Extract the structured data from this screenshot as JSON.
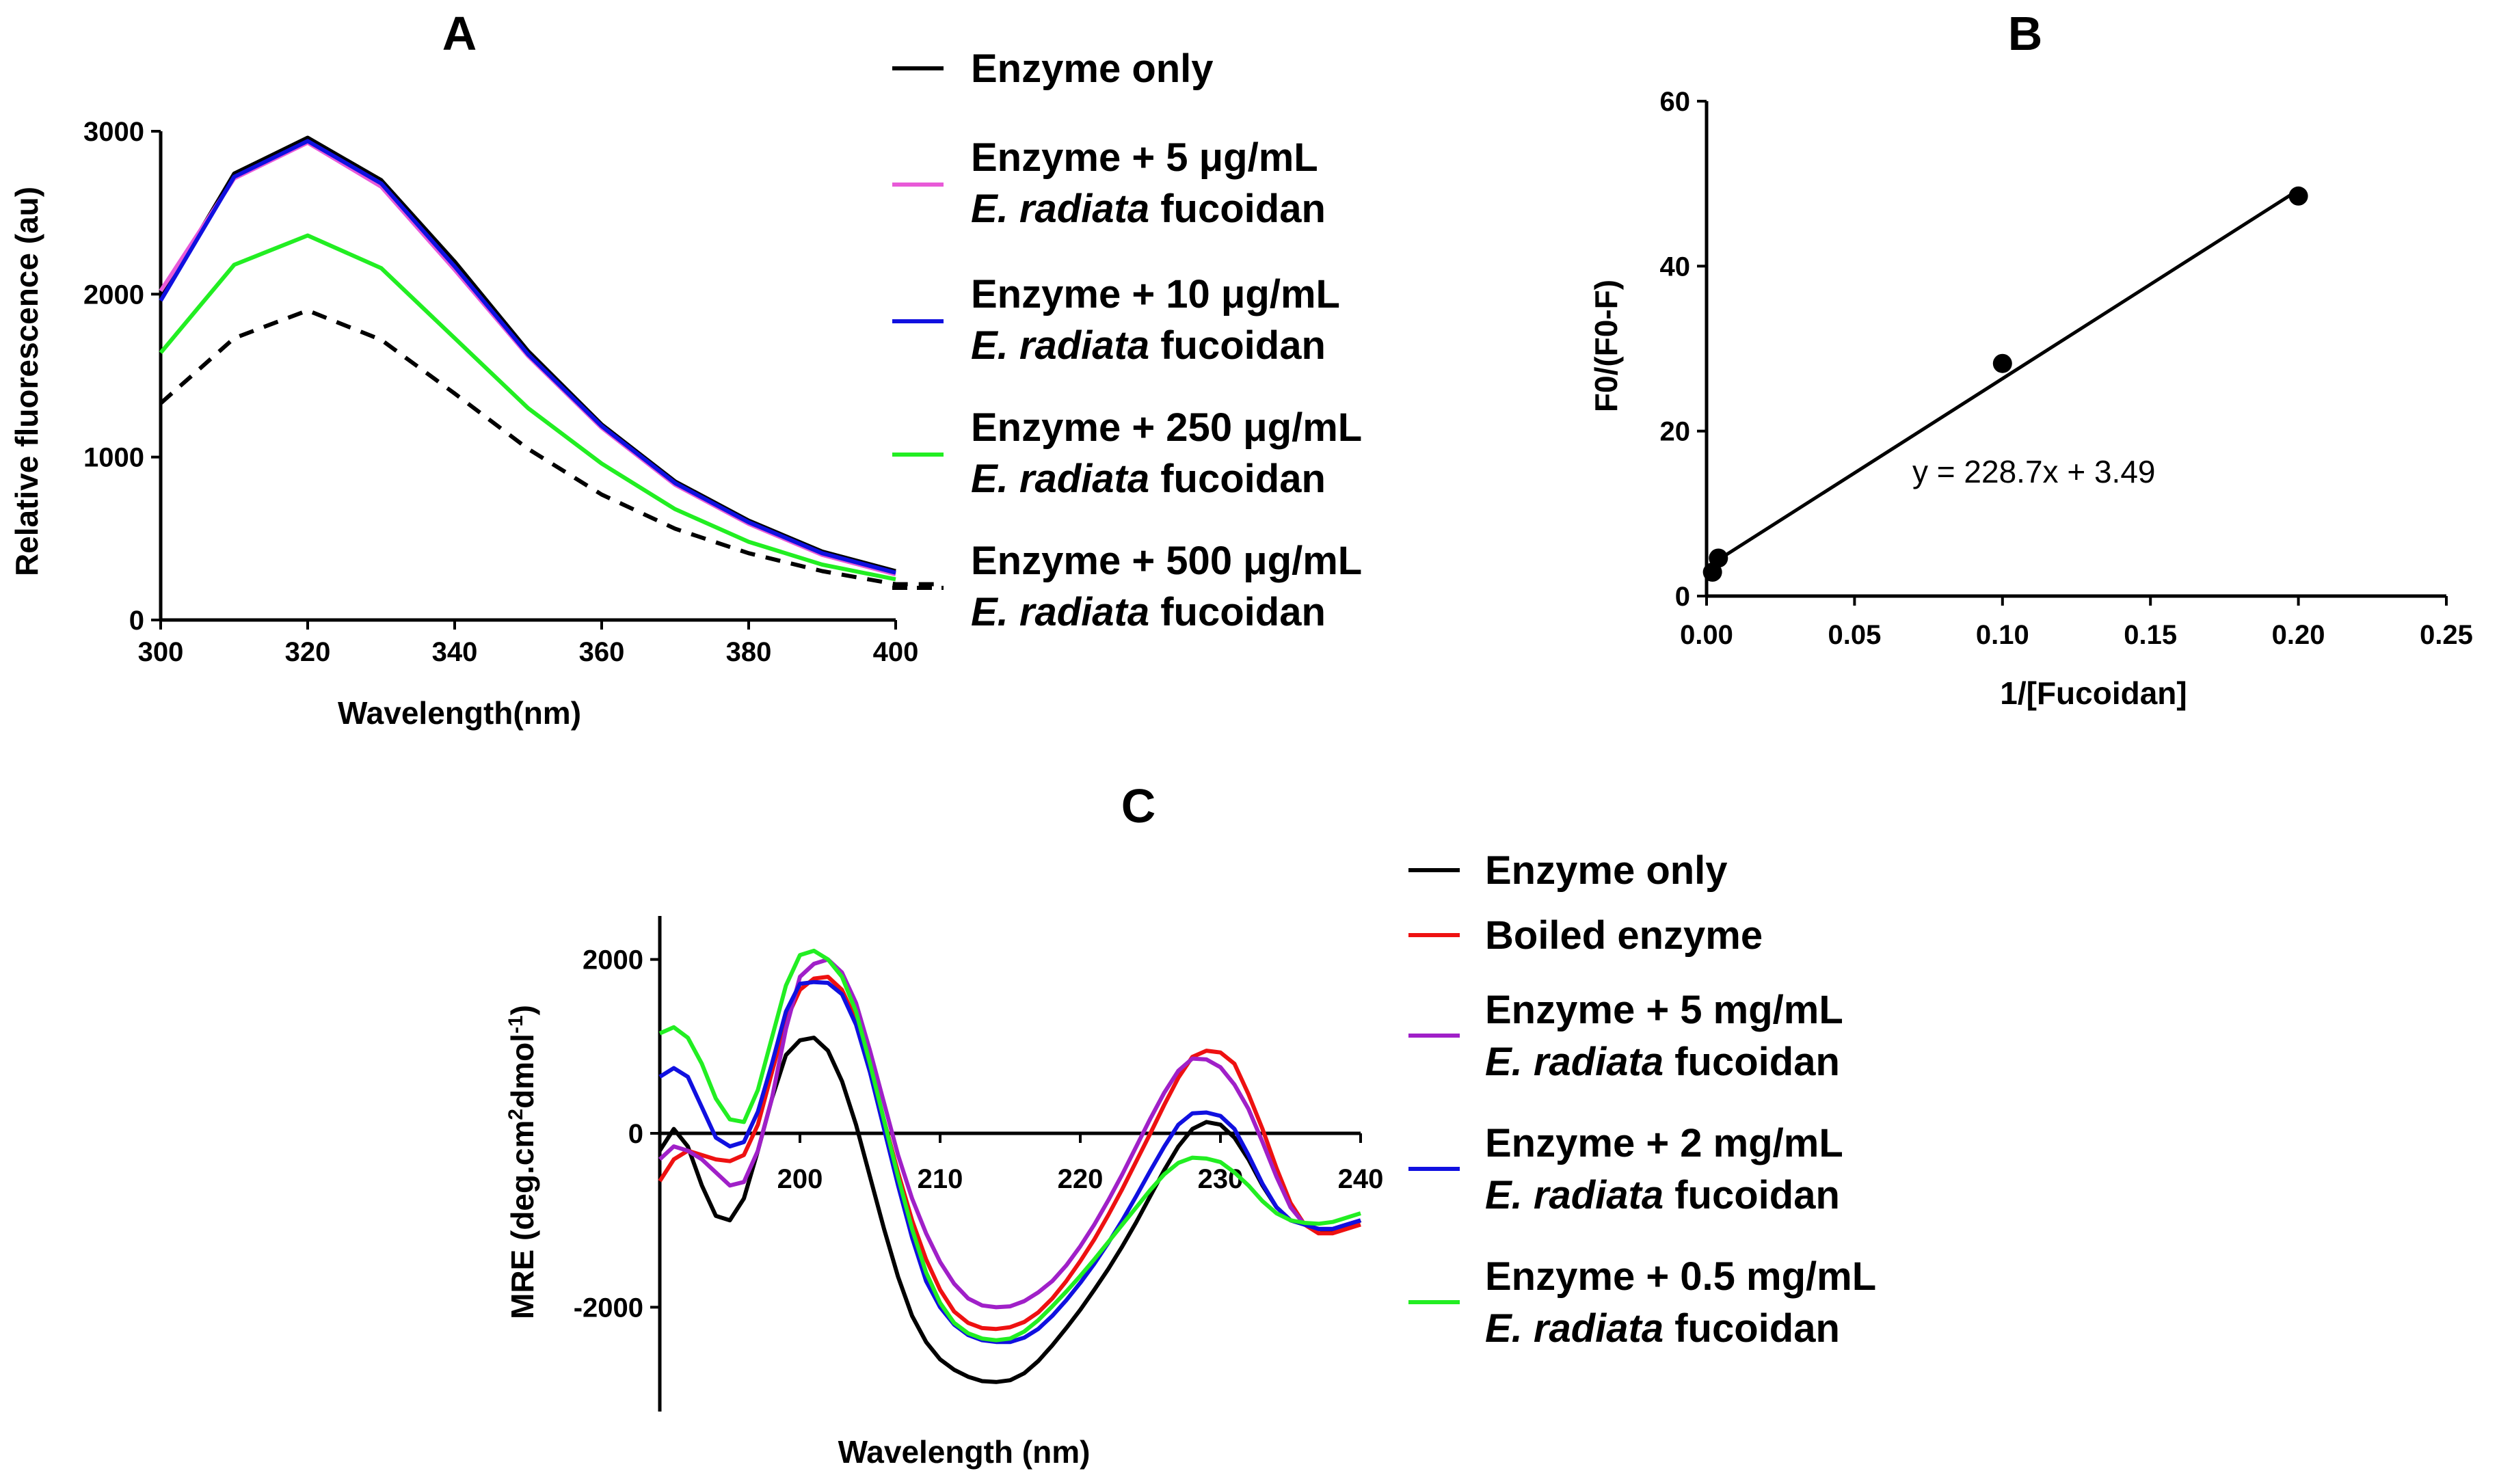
{
  "chart_data": [
    {
      "panel": "A",
      "type": "line",
      "title": "A",
      "xlabel": "Wavelength(nm)",
      "ylabel": "Relative fluorescence (au)",
      "xlim": [
        300,
        400
      ],
      "ylim": [
        0,
        3000
      ],
      "xticks": [
        "300",
        "320",
        "340",
        "360",
        "380",
        "400"
      ],
      "yticks": [
        "0",
        "1000",
        "2000",
        "3000"
      ],
      "x": [
        300,
        310,
        320,
        330,
        340,
        350,
        360,
        370,
        380,
        390,
        400
      ],
      "series": [
        {
          "name": "Enzyme only",
          "color": "#000000",
          "dash": false,
          "values": [
            1980,
            2740,
            2960,
            2700,
            2200,
            1650,
            1200,
            850,
            610,
            420,
            300
          ]
        },
        {
          "name": "Enzyme + 5 μg/mL E. radiata fucoidan",
          "color": "#e85ad8",
          "dash": false,
          "values": [
            2020,
            2710,
            2930,
            2660,
            2150,
            1620,
            1180,
            830,
            590,
            400,
            280
          ]
        },
        {
          "name": "Enzyme + 10 μg/mL E. radiata fucoidan",
          "color": "#1010e0",
          "dash": false,
          "values": [
            1960,
            2720,
            2940,
            2680,
            2170,
            1630,
            1190,
            840,
            600,
            410,
            290
          ]
        },
        {
          "name": "Enzyme + 250 μg/mL E. radiata fucoidan",
          "color": "#22ee22",
          "dash": false,
          "values": [
            1640,
            2180,
            2360,
            2160,
            1730,
            1300,
            960,
            680,
            480,
            340,
            250
          ]
        },
        {
          "name": "Enzyme + 500 μg/mL E. radiata fucoidan",
          "color": "#000000",
          "dash": true,
          "values": [
            1330,
            1730,
            1900,
            1720,
            1390,
            1050,
            770,
            560,
            410,
            300,
            220
          ]
        }
      ],
      "legend": [
        {
          "line1": "Enzyme only",
          "color": "#000000"
        },
        {
          "line1": "Enzyme + 5 μg/mL",
          "line2_it": "E. radiata",
          "line2": " fucoidan",
          "color": "#e85ad8"
        },
        {
          "line1": "Enzyme + 10 μg/mL",
          "line2_it": "E. radiata",
          "line2": " fucoidan",
          "color": "#1010e0"
        },
        {
          "line1": "Enzyme +  250 μg/mL",
          "line2_it": "E. radiata",
          "line2": " fucoidan",
          "color": "#22ee22"
        },
        {
          "line1": "Enzyme +  500 μg/mL",
          "line2_it": "E. radiata",
          "line2": " fucoidan",
          "color": "#000000",
          "dash": true
        }
      ]
    },
    {
      "panel": "B",
      "type": "scatter",
      "title": "B",
      "xlabel": "1/[Fucoidan]",
      "ylabel": "F0/(F0-F)",
      "xlim": [
        0,
        0.25
      ],
      "ylim": [
        0,
        60
      ],
      "xticks": [
        "0.00",
        "0.05",
        "0.10",
        "0.15",
        "0.20",
        "0.25"
      ],
      "yticks": [
        "0",
        "20",
        "40",
        "60"
      ],
      "x": [
        0.002,
        0.004,
        0.1,
        0.2
      ],
      "y": [
        2.9,
        4.6,
        28.2,
        48.5
      ],
      "fit": {
        "slope": 228.7,
        "intercept": 3.49,
        "x_range": [
          0.002,
          0.2
        ]
      },
      "equation": "y = 228.7x + 3.49"
    },
    {
      "panel": "C",
      "type": "line",
      "title": "C",
      "xlabel": "Wavelength (nm)",
      "ylabel": "MRE (deg.cm2dmol-1)",
      "ylabel_parts": [
        "MRE (deg.cm",
        "2",
        "dmol",
        "-1",
        ")"
      ],
      "xlim": [
        190,
        240
      ],
      "ylim": [
        -3200,
        2500
      ],
      "xticks": [
        "200",
        "210",
        "220",
        "230",
        "240"
      ],
      "yticks": [
        "2000",
        "0",
        "-2000"
      ],
      "x": [
        190,
        191,
        192,
        193,
        194,
        195,
        196,
        197,
        198,
        199,
        200,
        201,
        202,
        203,
        204,
        205,
        206,
        207,
        208,
        209,
        210,
        211,
        212,
        213,
        214,
        215,
        216,
        217,
        218,
        219,
        220,
        221,
        222,
        223,
        224,
        225,
        226,
        227,
        228,
        229,
        230,
        231,
        232,
        233,
        234,
        235,
        236,
        237,
        238,
        239,
        240
      ],
      "series": [
        {
          "name": "Enzyme only",
          "color": "#000000",
          "values": [
            -200,
            50,
            -150,
            -600,
            -950,
            -1000,
            -750,
            -200,
            400,
            900,
            1070,
            1100,
            950,
            600,
            100,
            -500,
            -1100,
            -1650,
            -2100,
            -2400,
            -2600,
            -2720,
            -2800,
            -2850,
            -2860,
            -2840,
            -2760,
            -2620,
            -2440,
            -2240,
            -2030,
            -1800,
            -1560,
            -1300,
            -1020,
            -720,
            -420,
            -150,
            50,
            130,
            100,
            -50,
            -300,
            -600,
            -850,
            -1000,
            -1050,
            -1100,
            -1130,
            -1080,
            -1000
          ]
        },
        {
          "name": "Boiled enzyme",
          "color": "#ee1111",
          "values": [
            -550,
            -300,
            -200,
            -250,
            -300,
            -320,
            -250,
            100,
            700,
            1300,
            1650,
            1780,
            1800,
            1650,
            1300,
            750,
            150,
            -450,
            -1000,
            -1450,
            -1800,
            -2050,
            -2180,
            -2240,
            -2250,
            -2230,
            -2170,
            -2060,
            -1900,
            -1700,
            -1470,
            -1220,
            -940,
            -640,
            -320,
            0,
            330,
            640,
            880,
            950,
            930,
            800,
            450,
            50,
            -400,
            -800,
            -1050,
            -1150,
            -1150,
            -1100,
            -1050
          ]
        },
        {
          "name": "Enzyme + 5 mg/mL E. radiata fucoidan",
          "color": "#a020c8",
          "values": [
            -300,
            -150,
            -200,
            -300,
            -450,
            -600,
            -560,
            -200,
            400,
            1200,
            1800,
            1950,
            2000,
            1850,
            1500,
            950,
            350,
            -250,
            -750,
            -1150,
            -1480,
            -1730,
            -1900,
            -1980,
            -2000,
            -1990,
            -1930,
            -1830,
            -1700,
            -1520,
            -1300,
            -1050,
            -770,
            -470,
            -150,
            170,
            470,
            720,
            860,
            850,
            760,
            560,
            280,
            -100,
            -500,
            -850,
            -1050,
            -1100,
            -1100,
            -1050,
            -1000
          ]
        },
        {
          "name": "Enzyme + 2 mg/mL E. radiata fucoidan",
          "color": "#1010e0",
          "values": [
            650,
            750,
            650,
            300,
            -50,
            -150,
            -100,
            250,
            800,
            1400,
            1720,
            1740,
            1730,
            1600,
            1250,
            700,
            50,
            -600,
            -1200,
            -1700,
            -2000,
            -2200,
            -2320,
            -2380,
            -2400,
            -2400,
            -2350,
            -2250,
            -2100,
            -1920,
            -1720,
            -1500,
            -1260,
            -1000,
            -720,
            -430,
            -150,
            100,
            230,
            240,
            200,
            50,
            -250,
            -580,
            -850,
            -1000,
            -1050,
            -1100,
            -1100,
            -1050,
            -1000
          ]
        },
        {
          "name": "Enzyme + 0.5 mg/mL E. radiata fucoidan",
          "color": "#22ee22",
          "values": [
            1150,
            1220,
            1100,
            800,
            400,
            160,
            130,
            500,
            1100,
            1700,
            2050,
            2100,
            2000,
            1800,
            1400,
            800,
            150,
            -500,
            -1100,
            -1600,
            -1950,
            -2180,
            -2300,
            -2360,
            -2380,
            -2360,
            -2280,
            -2150,
            -1990,
            -1820,
            -1640,
            -1450,
            -1250,
            -1050,
            -850,
            -650,
            -470,
            -340,
            -280,
            -290,
            -330,
            -450,
            -600,
            -780,
            -920,
            -1000,
            -1030,
            -1040,
            -1020,
            -970,
            -920
          ]
        }
      ],
      "legend": [
        {
          "line1": "Enzyme only",
          "color": "#000000"
        },
        {
          "line1": "Boiled enzyme",
          "color": "#ee1111"
        },
        {
          "line1": "Enzyme + 5 mg/mL",
          "line2_it": "E. radiata",
          "line2": " fucoidan",
          "color": "#a020c8"
        },
        {
          "line1": "Enzyme + 2 mg/mL",
          "line2_it": "E. radiata",
          "line2": " fucoidan",
          "color": "#1010e0"
        },
        {
          "line1": "Enzyme + 0.5 mg/mL",
          "line2_it": " E. radiata",
          "line2": " fucoidan",
          "color": "#22ee22"
        }
      ]
    }
  ]
}
